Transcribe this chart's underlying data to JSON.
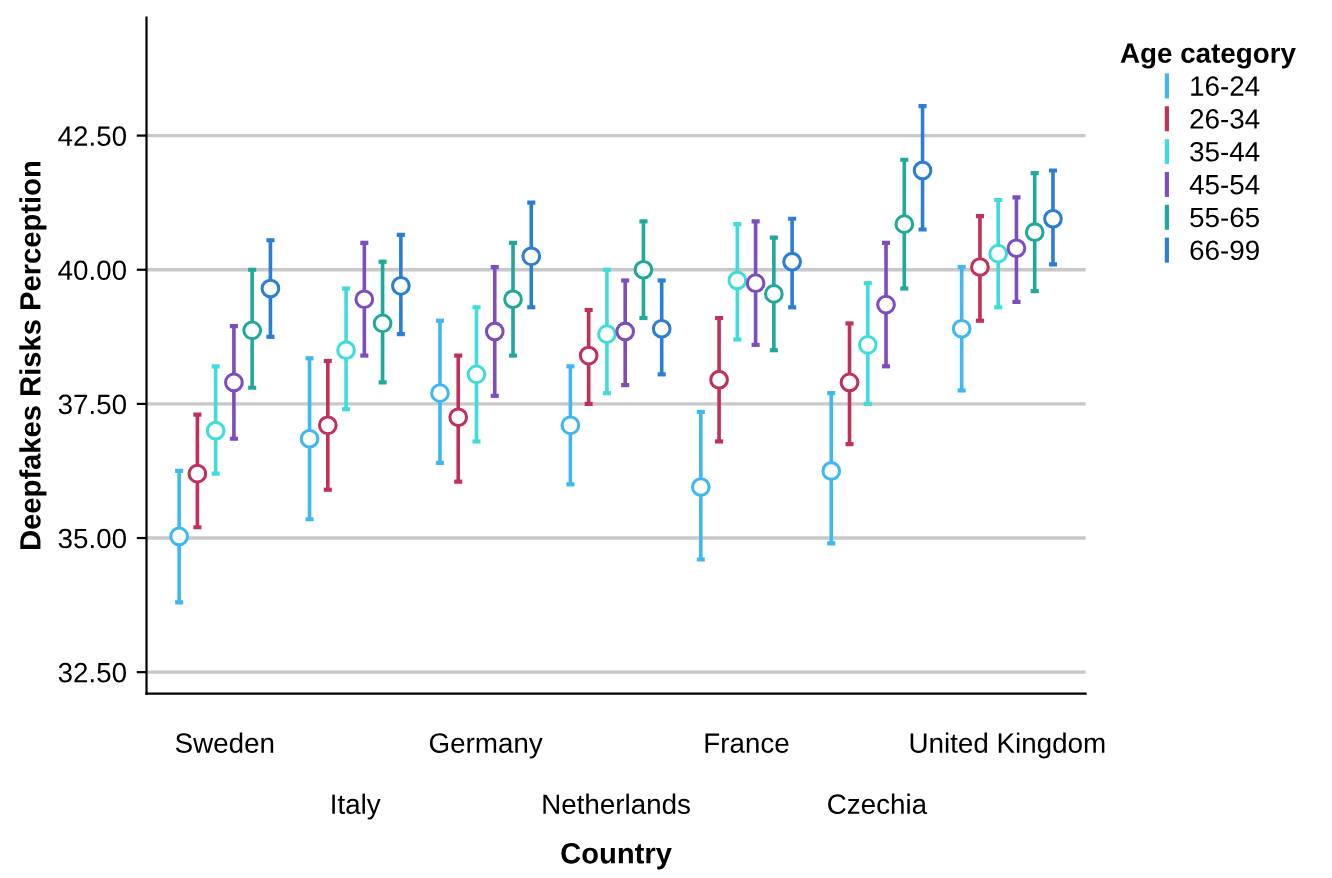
{
  "chart_data": {
    "type": "scatter",
    "xlabel": "Country",
    "ylabel": "Deepfakes Risks Perception",
    "legend_title": "Age category",
    "categories": [
      "Sweden",
      "Italy",
      "Germany",
      "Netherlands",
      "France",
      "Czechia",
      "United Kingdom"
    ],
    "series": [
      {
        "name": "16-24",
        "color": "#3fb8f2",
        "values": [
          35.03,
          36.85,
          37.7,
          37.1,
          35.95,
          36.25,
          38.9
        ],
        "errors": [
          [
            33.8,
            36.25
          ],
          [
            35.35,
            38.35
          ],
          [
            36.4,
            39.05
          ],
          [
            36.0,
            38.2
          ],
          [
            34.6,
            37.35
          ],
          [
            34.9,
            37.7
          ],
          [
            37.75,
            40.05
          ]
        ]
      },
      {
        "name": "26-34",
        "color": "#c0305a",
        "values": [
          36.2,
          37.1,
          37.25,
          38.4,
          37.95,
          37.9,
          40.05
        ],
        "errors": [
          [
            35.2,
            37.3
          ],
          [
            35.9,
            38.3
          ],
          [
            36.05,
            38.4
          ],
          [
            37.5,
            39.25
          ],
          [
            36.8,
            39.1
          ],
          [
            36.75,
            39.0
          ],
          [
            39.05,
            41.0
          ]
        ]
      },
      {
        "name": "35-44",
        "color": "#3fdcdc",
        "values": [
          37.0,
          38.5,
          38.05,
          38.8,
          39.8,
          38.6,
          40.3
        ],
        "errors": [
          [
            36.2,
            38.2
          ],
          [
            37.4,
            39.65
          ],
          [
            36.8,
            39.3
          ],
          [
            37.7,
            40.0
          ],
          [
            38.7,
            40.85
          ],
          [
            37.5,
            39.75
          ],
          [
            39.3,
            41.3
          ]
        ]
      },
      {
        "name": "45-54",
        "color": "#7e4dbd",
        "values": [
          37.9,
          39.45,
          38.85,
          38.85,
          39.75,
          39.35,
          40.4
        ],
        "errors": [
          [
            36.85,
            38.95
          ],
          [
            38.4,
            40.5
          ],
          [
            37.65,
            40.05
          ],
          [
            37.85,
            39.8
          ],
          [
            38.6,
            40.9
          ],
          [
            38.2,
            40.5
          ],
          [
            39.4,
            41.35
          ]
        ]
      },
      {
        "name": "55-65",
        "color": "#20a89a",
        "values": [
          38.87,
          39.0,
          39.45,
          40.0,
          39.55,
          40.85,
          40.7
        ],
        "errors": [
          [
            37.8,
            40.0
          ],
          [
            37.9,
            40.15
          ],
          [
            38.4,
            40.5
          ],
          [
            39.1,
            40.9
          ],
          [
            38.5,
            40.6
          ],
          [
            39.65,
            42.05
          ],
          [
            39.6,
            41.8
          ]
        ]
      },
      {
        "name": "66-99",
        "color": "#2a7fd4",
        "values": [
          39.65,
          39.7,
          40.25,
          38.9,
          40.15,
          41.85,
          40.95
        ],
        "errors": [
          [
            38.75,
            40.55
          ],
          [
            38.8,
            40.65
          ],
          [
            39.3,
            41.25
          ],
          [
            38.05,
            39.8
          ],
          [
            39.3,
            40.95
          ],
          [
            40.75,
            43.05
          ],
          [
            40.1,
            41.85
          ]
        ]
      }
    ],
    "ylim": [
      32.1,
      44.7
    ],
    "yticks": [
      {
        "value": 32.5,
        "label": "32.50"
      },
      {
        "value": 35,
        "label": "35.00"
      },
      {
        "value": 37.5,
        "label": "37.50"
      },
      {
        "value": 40,
        "label": "40.00"
      },
      {
        "value": 42.5,
        "label": "42.50"
      }
    ],
    "grid": "y",
    "legend": "right",
    "marker": "circle"
  }
}
